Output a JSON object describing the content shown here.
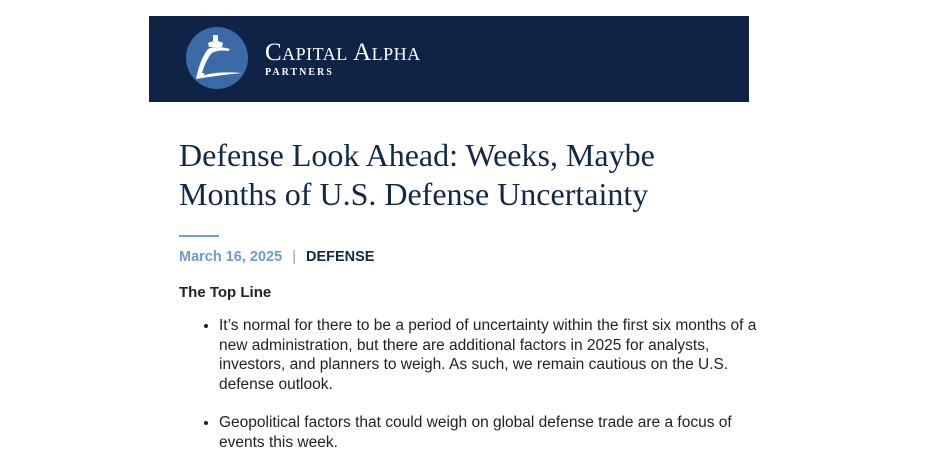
{
  "header": {
    "brand_name": "Capital Alpha",
    "brand_sub": "PARTNERS",
    "logo_icon": "capitol-dome-icon",
    "bg_color": "#0f2346"
  },
  "article": {
    "title": "Defense Look Ahead: Weeks, Maybe Months of U.S. Defense Uncertainty",
    "date": "March 16, 2025",
    "separator": "|",
    "category": "DEFENSE",
    "section_heading": "The Top Line",
    "bullets": [
      "It’s normal for there to be a period of uncertainty within the first six months of a new administration, but there are additional factors in 2025 for analysts, investors, and planners to weigh. As such, we remain cautious on the U.S. defense outlook.",
      "Geopolitical factors that could weigh on global defense trade are a focus of events this week."
    ]
  }
}
